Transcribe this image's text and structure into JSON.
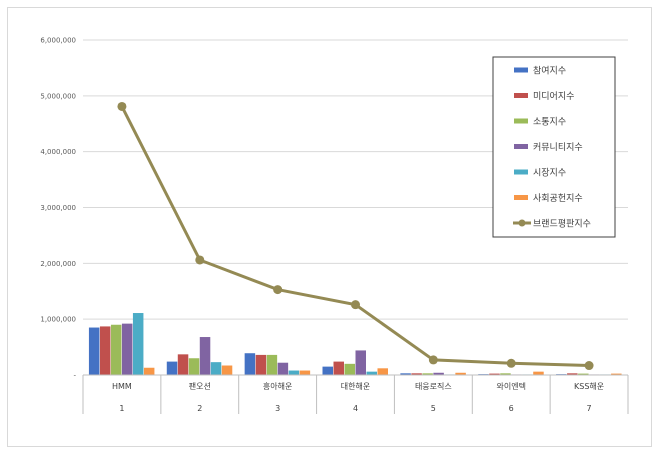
{
  "chart_data": {
    "type": "bar",
    "title": "",
    "xlabel": "",
    "ylabel": "",
    "ylim": [
      0,
      6000000
    ],
    "yticks": [
      0,
      1000000,
      2000000,
      3000000,
      4000000,
      5000000,
      6000000
    ],
    "ytick_labels": [
      "-",
      "1,000,000",
      "2,000,000",
      "3,000,000",
      "4,000,000",
      "5,000,000",
      "6,000,000"
    ],
    "categories": [
      "HMM",
      "팬오션",
      "흥아해운",
      "대한해운",
      "태웅로직스",
      "와이엔텍",
      "KSS해운"
    ],
    "ranks": [
      "1",
      "2",
      "3",
      "4",
      "5",
      "6",
      "7"
    ],
    "series": [
      {
        "name": "참여지수",
        "kind": "bar",
        "color": "#4472c4",
        "values": [
          850000,
          240000,
          390000,
          150000,
          30000,
          15000,
          15000
        ]
      },
      {
        "name": "미디어지수",
        "kind": "bar",
        "color": "#c0504d",
        "values": [
          870000,
          370000,
          360000,
          240000,
          30000,
          25000,
          30000
        ]
      },
      {
        "name": "소통지수",
        "kind": "bar",
        "color": "#9bbb59",
        "values": [
          900000,
          300000,
          360000,
          200000,
          30000,
          30000,
          25000
        ]
      },
      {
        "name": "커뮤니티지수",
        "kind": "bar",
        "color": "#8064a2",
        "values": [
          920000,
          680000,
          220000,
          440000,
          40000,
          10000,
          10000
        ]
      },
      {
        "name": "시장지수",
        "kind": "bar",
        "color": "#4bacc6",
        "values": [
          1110000,
          230000,
          80000,
          60000,
          10000,
          10000,
          10000
        ]
      },
      {
        "name": "사회공헌지수",
        "kind": "bar",
        "color": "#f79646",
        "values": [
          130000,
          170000,
          80000,
          120000,
          40000,
          60000,
          25000
        ]
      },
      {
        "name": "브랜드평판지수",
        "kind": "line",
        "color": "#948a54",
        "values": [
          4810000,
          2060000,
          1530000,
          1260000,
          270000,
          210000,
          170000
        ]
      }
    ],
    "legend_position": "top-right",
    "grid": true
  }
}
